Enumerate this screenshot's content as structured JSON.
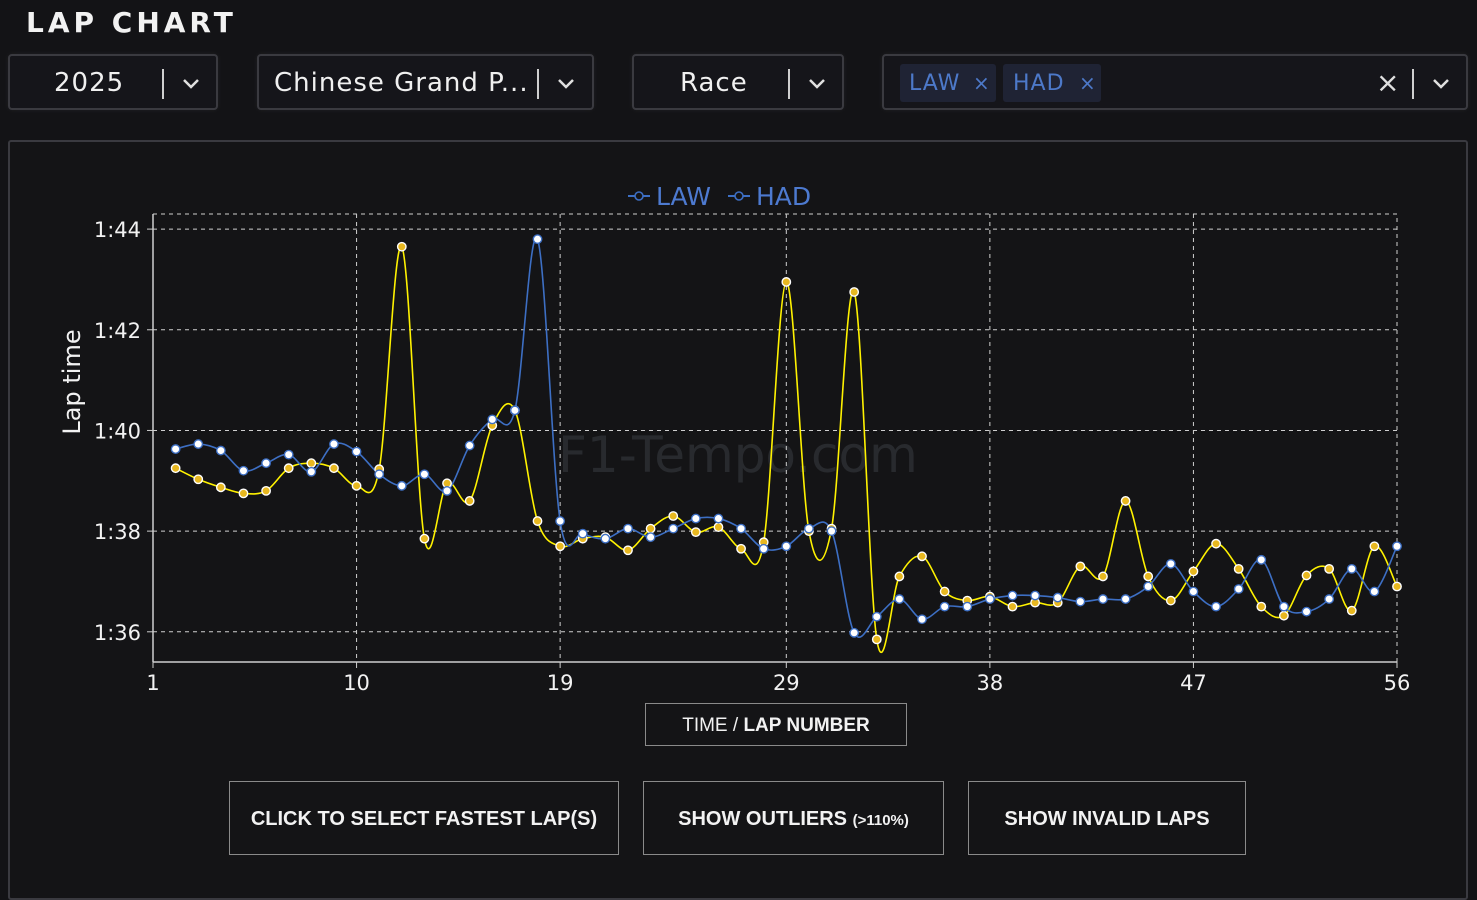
{
  "header": {
    "title": "LAP CHART"
  },
  "filters": {
    "year": "2025",
    "event": "Chinese Grand P...",
    "session": "Race",
    "drivers": [
      {
        "code": "LAW",
        "remove": "×"
      },
      {
        "code": "HAD",
        "remove": "×"
      }
    ],
    "clear": "×"
  },
  "watermark": "F1-Tempo.com",
  "axis_toggle": {
    "time": "TIME",
    "separator": " / ",
    "lap_number": "LAP NUMBER"
  },
  "buttons": {
    "fastest": "CLICK TO SELECT FASTEST LAP(S)",
    "outliers": "SHOW OUTLIERS",
    "outliers_note": "(>110%)",
    "invalid": "SHOW INVALID LAPS"
  },
  "colors": {
    "law": "#fff200",
    "law_marker": "#e8b820",
    "had": "#3d6fc4",
    "had_marker": "#ffffff",
    "grid": "#cfcfcf"
  },
  "chart_data": {
    "type": "line",
    "title": "",
    "xlabel": "",
    "ylabel": "Lap time",
    "xlim": [
      1,
      56
    ],
    "ylim": [
      95.4,
      104.3
    ],
    "xticks": [
      1,
      10,
      19,
      29,
      38,
      47,
      56
    ],
    "yticks": [
      {
        "value": 96,
        "label": "1:36"
      },
      {
        "value": 98,
        "label": "1:38"
      },
      {
        "value": 100,
        "label": "1:40"
      },
      {
        "value": 102,
        "label": "1:42"
      },
      {
        "value": 104,
        "label": "1:44"
      }
    ],
    "legend_position": "top",
    "series": [
      {
        "name": "LAW",
        "x": [
          2,
          3,
          4,
          5,
          6,
          7,
          8,
          9,
          10,
          11,
          12,
          13,
          14,
          15,
          16,
          17,
          18,
          19,
          20,
          21,
          22,
          23,
          24,
          25,
          26,
          27,
          28,
          29,
          30,
          31,
          32,
          33,
          34,
          35,
          36,
          37,
          38,
          39,
          40,
          41,
          42,
          43,
          44,
          45,
          46,
          47,
          48,
          49,
          50,
          51,
          52,
          53,
          54,
          55,
          56
        ],
        "values": [
          99.25,
          99.03,
          98.87,
          98.75,
          98.8,
          99.25,
          99.35,
          99.25,
          98.9,
          99.23,
          103.65,
          97.85,
          98.95,
          98.6,
          100.1,
          100.4,
          98.2,
          97.7,
          97.85,
          97.88,
          97.62,
          98.05,
          98.3,
          97.98,
          98.08,
          97.65,
          97.78,
          102.95,
          98.0,
          98.05,
          102.75,
          95.85,
          97.1,
          97.5,
          96.8,
          96.62,
          96.7,
          96.5,
          96.58,
          96.58,
          97.3,
          97.1,
          98.6,
          97.1,
          96.62,
          97.2,
          97.75,
          97.25,
          96.5,
          96.32,
          97.12,
          97.25,
          96.42,
          97.7,
          96.9
        ]
      },
      {
        "name": "HAD",
        "x": [
          2,
          3,
          4,
          5,
          6,
          7,
          8,
          9,
          10,
          11,
          12,
          13,
          14,
          15,
          16,
          17,
          18,
          19,
          20,
          21,
          22,
          23,
          24,
          25,
          26,
          27,
          28,
          29,
          30,
          31,
          32,
          33,
          34,
          35,
          36,
          37,
          38,
          39,
          40,
          41,
          42,
          43,
          44,
          45,
          46,
          47,
          48,
          49,
          50,
          51,
          52,
          53,
          54,
          55,
          56
        ],
        "values": [
          99.63,
          99.73,
          99.6,
          99.2,
          99.35,
          99.52,
          99.18,
          99.73,
          99.58,
          99.13,
          98.9,
          99.13,
          98.8,
          99.7,
          100.22,
          100.4,
          103.8,
          98.2,
          97.95,
          97.85,
          98.05,
          97.88,
          98.05,
          98.25,
          98.25,
          98.05,
          97.65,
          97.7,
          98.05,
          98.0,
          95.98,
          96.3,
          96.65,
          96.25,
          96.5,
          96.5,
          96.65,
          96.72,
          96.72,
          96.68,
          96.6,
          96.65,
          96.65,
          96.9,
          97.35,
          96.8,
          96.5,
          96.85,
          97.43,
          96.5,
          96.4,
          96.65,
          97.25,
          96.8,
          97.7
        ]
      }
    ]
  }
}
